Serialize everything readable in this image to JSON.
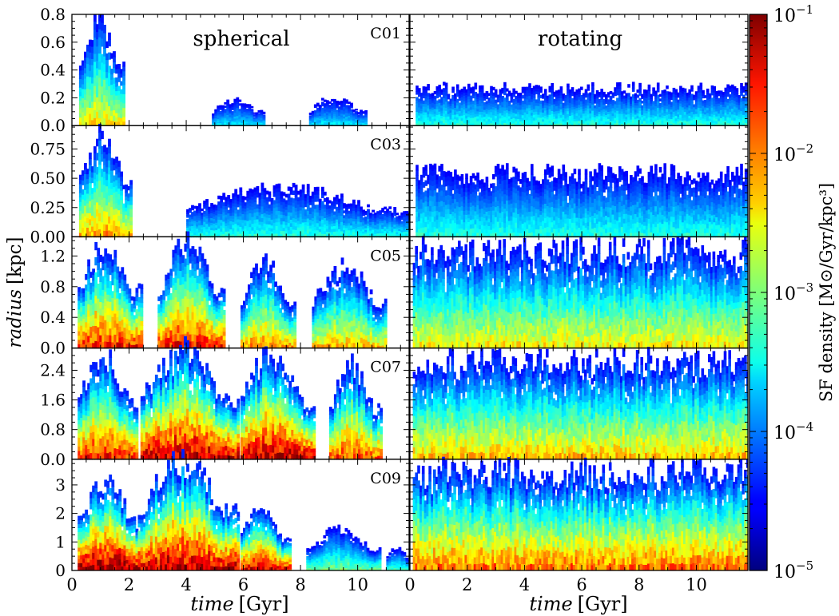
{
  "figure": {
    "xlabel_italic": "time",
    "xlabel_unit": "[Gyr]",
    "ylabel_italic": "radius",
    "ylabel_unit": "[kpc]",
    "column_titles": [
      "spherical",
      "rotating"
    ],
    "colorbar_label": "SF density [M⊙/Gyr/kpc³]"
  },
  "chart_data": {
    "type": "heatmap",
    "colormap": "jet",
    "colorbar": {
      "scale": "log",
      "range": [
        1e-05,
        0.1
      ],
      "ticks": [
        {
          "value": 0.1,
          "mantissa": "10",
          "exponent": "−1"
        },
        {
          "value": 0.01,
          "mantissa": "10",
          "exponent": "−2"
        },
        {
          "value": 0.001,
          "mantissa": "10",
          "exponent": "−3"
        },
        {
          "value": 0.0001,
          "mantissa": "10",
          "exponent": "−4"
        },
        {
          "value": 1e-05,
          "mantissa": "10",
          "exponent": "−5"
        }
      ]
    },
    "x_range": [
      0,
      11.8
    ],
    "x_ticks": [
      0,
      2,
      4,
      6,
      8,
      10
    ],
    "x_tick_labels": [
      "0",
      "2",
      "4",
      "6",
      "8",
      "10"
    ],
    "columns": [
      "spherical",
      "rotating"
    ],
    "rows": [
      {
        "label": "C01",
        "ylim": [
          0,
          0.8
        ],
        "y_ticks": [
          0,
          0.2,
          0.4,
          0.6,
          0.8
        ],
        "y_tick_labels": [
          "0.0",
          "0.2",
          "0.4",
          "0.6",
          "0.8"
        ],
        "spherical_bursts": [
          {
            "t0": 0.25,
            "t1": 1.85,
            "peak": 0.75,
            "intensity": 0.6
          },
          {
            "t0": 4.9,
            "t1": 6.7,
            "peak": 0.18,
            "intensity": 0.3
          },
          {
            "t0": 8.3,
            "t1": 10.3,
            "peak": 0.2,
            "intensity": 0.3
          }
        ],
        "rotating": {
          "t0": 0.2,
          "t1": 11.8,
          "level": 0.3,
          "intensity": 0.35
        }
      },
      {
        "label": "C03",
        "ylim": [
          0,
          0.95
        ],
        "y_ticks": [
          0,
          0.25,
          0.5,
          0.75
        ],
        "y_tick_labels": [
          "0.00",
          "0.25",
          "0.50",
          "0.75"
        ],
        "spherical_bursts": [
          {
            "t0": 0.25,
            "t1": 2.1,
            "peak": 0.85,
            "intensity": 0.7
          },
          {
            "t0": 4.0,
            "t1": 11.8,
            "peak": 0.42,
            "intensity": 0.35
          }
        ],
        "rotating": {
          "t0": 0.2,
          "t1": 11.8,
          "level": 0.6,
          "intensity": 0.35
        }
      },
      {
        "label": "C05",
        "ylim": [
          0,
          1.45
        ],
        "y_ticks": [
          0,
          0.4,
          0.8,
          1.2
        ],
        "y_tick_labels": [
          "0.0",
          "0.4",
          "0.8",
          "1.2"
        ],
        "spherical_bursts": [
          {
            "t0": 0.2,
            "t1": 2.4,
            "peak": 1.35,
            "intensity": 0.85
          },
          {
            "t0": 3.0,
            "t1": 5.3,
            "peak": 1.35,
            "intensity": 0.85
          },
          {
            "t0": 5.9,
            "t1": 7.8,
            "peak": 1.1,
            "intensity": 0.7
          },
          {
            "t0": 8.4,
            "t1": 11.0,
            "peak": 1.05,
            "intensity": 0.65
          }
        ],
        "rotating": {
          "t0": 0.1,
          "t1": 11.8,
          "level": 1.4,
          "intensity": 0.6
        }
      },
      {
        "label": "C07",
        "ylim": [
          0,
          3.0
        ],
        "y_ticks": [
          0,
          0.8,
          1.6,
          2.4
        ],
        "y_tick_labels": [
          "0.0",
          "0.8",
          "1.6",
          "2.4"
        ],
        "spherical_bursts": [
          {
            "t0": 0.2,
            "t1": 2.3,
            "peak": 2.7,
            "intensity": 0.85
          },
          {
            "t0": 2.4,
            "t1": 5.8,
            "peak": 2.9,
            "intensity": 0.95
          },
          {
            "t0": 5.9,
            "t1": 8.5,
            "peak": 2.8,
            "intensity": 0.95
          },
          {
            "t0": 9.0,
            "t1": 10.8,
            "peak": 2.5,
            "intensity": 0.8
          }
        ],
        "rotating": {
          "t0": 0.1,
          "t1": 11.8,
          "level": 2.9,
          "intensity": 0.65
        }
      },
      {
        "label": "C09",
        "ylim": [
          0,
          3.9
        ],
        "y_ticks": [
          0,
          1,
          2,
          3
        ],
        "y_tick_labels": [
          "0",
          "1",
          "2",
          "3"
        ],
        "spherical_bursts": [
          {
            "t0": 0.2,
            "t1": 2.4,
            "peak": 3.1,
            "intensity": 1.0
          },
          {
            "t0": 2.4,
            "t1": 5.8,
            "peak": 3.8,
            "intensity": 0.95
          },
          {
            "t0": 5.9,
            "t1": 7.6,
            "peak": 2.1,
            "intensity": 0.9
          },
          {
            "t0": 8.2,
            "t1": 10.8,
            "peak": 1.4,
            "intensity": 0.45
          },
          {
            "t0": 11.0,
            "t1": 11.8,
            "peak": 0.8,
            "intensity": 0.4
          }
        ],
        "rotating": {
          "t0": 0.1,
          "t1": 11.8,
          "level": 3.8,
          "intensity": 0.75
        }
      }
    ]
  }
}
